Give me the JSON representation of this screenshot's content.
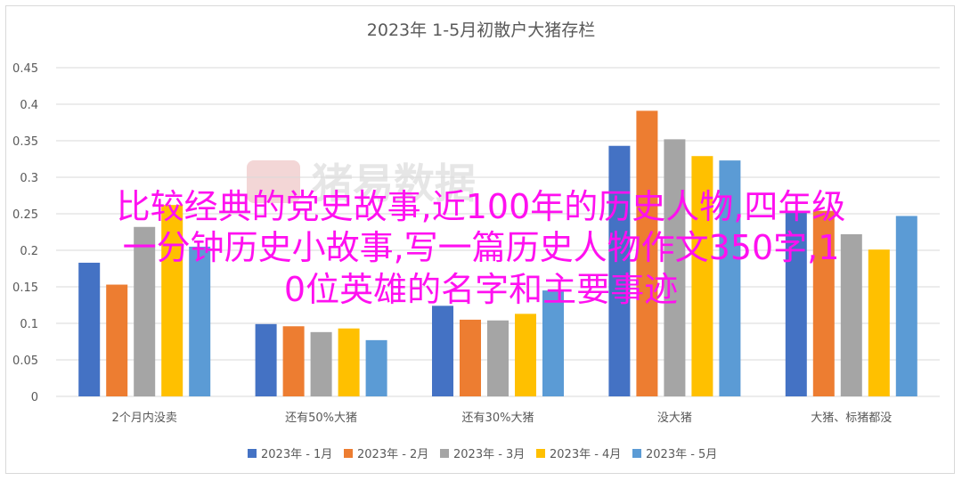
{
  "chart_data": {
    "type": "bar",
    "title": "2023年 1-5月初散户大猪存栏",
    "categories": [
      "2个月内没卖",
      "还有50%大猪",
      "还有30%大猪",
      "没大猪",
      "大猪、标猪都没"
    ],
    "series": [
      {
        "name": "2023年 - 1月",
        "color": "#4472c4",
        "values": [
          0.183,
          0.099,
          0.124,
          0.343,
          0.253
        ]
      },
      {
        "name": "2023年 - 2月",
        "color": "#ed7d31",
        "values": [
          0.153,
          0.096,
          0.105,
          0.391,
          0.254
        ]
      },
      {
        "name": "2023年 - 3月",
        "color": "#a5a5a5",
        "values": [
          0.232,
          0.088,
          0.104,
          0.352,
          0.222
        ]
      },
      {
        "name": "2023年 - 4月",
        "color": "#ffc000",
        "values": [
          0.262,
          0.093,
          0.113,
          0.329,
          0.201
        ]
      },
      {
        "name": "2023年 - 5月",
        "color": "#5b9bd5",
        "values": [
          0.205,
          0.077,
          0.145,
          0.323,
          0.247
        ]
      }
    ],
    "yticks": [
      "0",
      "0.05",
      "0.1",
      "0.15",
      "0.2",
      "0.25",
      "0.3",
      "0.35",
      "0.4",
      "0.45"
    ],
    "ylim": [
      0,
      0.45
    ],
    "grid": true,
    "legend_position": "bottom"
  },
  "watermark_text": "猪易数据",
  "overlay_lines": [
    "比较经典的党史故事,近100年的历史人物,四年级",
    "一分钟历史小故事,写一篇历史人物作文350字,1",
    "0位英雄的名字和主要事迹"
  ]
}
